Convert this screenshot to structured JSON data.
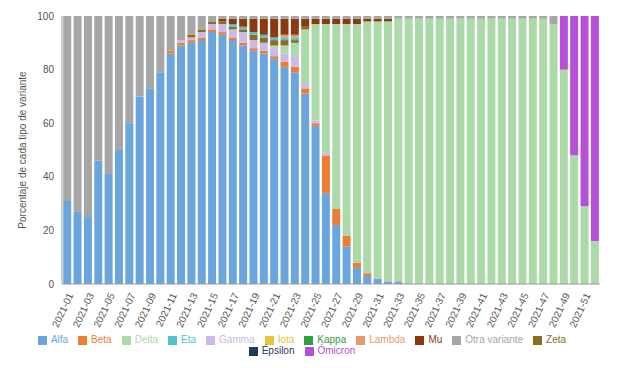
{
  "chart_data": {
    "type": "bar",
    "stacked": true,
    "grid": false,
    "legend": "bottom",
    "y_label": "Porcentaje de cada tipo de variante",
    "ylim": [
      0,
      100
    ],
    "yticks": [
      0,
      20,
      40,
      60,
      80,
      100
    ],
    "categories": [
      "2021-01",
      null,
      "2021-03",
      null,
      "2021-05",
      null,
      "2021-07",
      null,
      "2021-09",
      null,
      "2021-11",
      null,
      "2021-13",
      null,
      "2021-15",
      null,
      "2021-17",
      null,
      "2021-19",
      null,
      "2021-21",
      null,
      "2021-23",
      null,
      "2021-25",
      null,
      "2021-27",
      null,
      "2021-29",
      null,
      "2021-31",
      null,
      "2021-33",
      null,
      "2021-35",
      null,
      "2021-37",
      null,
      "2021-39",
      null,
      "2021-41",
      null,
      "2021-43",
      null,
      "2021-45",
      null,
      "2021-47",
      null,
      "2021-49",
      null,
      "2021-51",
      null
    ],
    "series": [
      {
        "name": "Alfa",
        "color": "#6aa6dd",
        "values": [
          31,
          27,
          25,
          46,
          41,
          50,
          60,
          70,
          73,
          79,
          86,
          89,
          90,
          91,
          94,
          93,
          91,
          89,
          87,
          86,
          84,
          81,
          79,
          71,
          59,
          34,
          22,
          14,
          6,
          3,
          2,
          1,
          1,
          0,
          0,
          0,
          0,
          0,
          0,
          0,
          0,
          0,
          0,
          0,
          0,
          0,
          0,
          0,
          0,
          0,
          0,
          0
        ]
      },
      {
        "name": "Beta",
        "color": "#ed7d31",
        "values": [
          0,
          0,
          0,
          0,
          0,
          0,
          0,
          0,
          0,
          0,
          1,
          1,
          1,
          1,
          1,
          1,
          1,
          1,
          1,
          1,
          1,
          2,
          2,
          2,
          1,
          14,
          6,
          4,
          2,
          1,
          0,
          0,
          0,
          0,
          0,
          0,
          0,
          0,
          0,
          0,
          0,
          0,
          0,
          0,
          0,
          0,
          0,
          0,
          0,
          0,
          0,
          0
        ]
      },
      {
        "name": "Gamma",
        "color": "#cdb8ea",
        "values": [
          0,
          0,
          0,
          0,
          0,
          0,
          0,
          0,
          0,
          0,
          0,
          1,
          1,
          2,
          2,
          3,
          3,
          4,
          3,
          3,
          3,
          3,
          4,
          2,
          1,
          1,
          0,
          0,
          0,
          0,
          0,
          0,
          0,
          0,
          0,
          0,
          0,
          0,
          0,
          0,
          0,
          0,
          0,
          0,
          0,
          0,
          0,
          0,
          0,
          0,
          0,
          0
        ]
      },
      {
        "name": "Delta",
        "color": "#acd9a8",
        "values": [
          0,
          0,
          0,
          0,
          0,
          0,
          0,
          0,
          0,
          0,
          0,
          0,
          0,
          0,
          0,
          0,
          0,
          0,
          0,
          0,
          1,
          3,
          5,
          20,
          36,
          48,
          69,
          79,
          89,
          94,
          96,
          97,
          98,
          99,
          99,
          99,
          99,
          99,
          99,
          99,
          99,
          99,
          99,
          99,
          99,
          99,
          99,
          97,
          80,
          48,
          29,
          16
        ]
      },
      {
        "name": "Épsilon",
        "color": "#1f3b5c",
        "values": [
          0,
          0,
          0,
          0,
          0,
          0,
          0,
          0,
          0,
          0,
          0,
          0,
          0,
          0,
          0,
          0,
          0,
          0,
          0,
          0,
          0,
          0,
          0,
          0,
          0,
          0,
          0,
          0,
          0,
          0,
          0,
          0,
          0,
          0,
          0,
          0,
          0,
          0,
          0,
          0,
          0,
          0,
          0,
          0,
          0,
          0,
          0,
          0,
          0,
          0,
          0,
          0
        ]
      },
      {
        "name": "Zeta",
        "color": "#8c6d1f",
        "values": [
          0,
          0,
          0,
          0,
          0,
          0,
          0,
          0,
          0,
          0,
          0,
          0,
          1,
          1,
          1,
          1,
          1,
          1,
          2,
          2,
          2,
          2,
          1,
          1,
          0,
          0,
          0,
          0,
          0,
          0,
          0,
          0,
          0,
          0,
          0,
          0,
          0,
          0,
          0,
          0,
          0,
          0,
          0,
          0,
          0,
          0,
          0,
          0,
          0,
          0,
          0,
          0
        ]
      },
      {
        "name": "Eta",
        "color": "#4fc3c7",
        "values": [
          0,
          0,
          0,
          0,
          0,
          0,
          0,
          0,
          0,
          0,
          0,
          0,
          0,
          0,
          0,
          0,
          1,
          1,
          1,
          1,
          1,
          1,
          1,
          0,
          0,
          0,
          0,
          0,
          0,
          0,
          0,
          0,
          0,
          0,
          0,
          0,
          0,
          0,
          0,
          0,
          0,
          0,
          0,
          0,
          0,
          0,
          0,
          0,
          0,
          0,
          0,
          0
        ]
      },
      {
        "name": "Iota",
        "color": "#e8c53a",
        "values": [
          0,
          0,
          0,
          0,
          0,
          0,
          0,
          0,
          0,
          0,
          0,
          0,
          0,
          0,
          0,
          0,
          0,
          0,
          0,
          0,
          0,
          0,
          0,
          0,
          0,
          0,
          0,
          0,
          0,
          0,
          0,
          0,
          0,
          0,
          0,
          0,
          0,
          0,
          0,
          0,
          0,
          0,
          0,
          0,
          0,
          0,
          0,
          0,
          0,
          0,
          0,
          0
        ]
      },
      {
        "name": "Kappa",
        "color": "#2e9e3e",
        "values": [
          0,
          0,
          0,
          0,
          0,
          0,
          0,
          0,
          0,
          0,
          0,
          0,
          0,
          0,
          0,
          0,
          0,
          0,
          0,
          0,
          0,
          0,
          0,
          0,
          0,
          0,
          0,
          0,
          0,
          0,
          0,
          0,
          0,
          0,
          0,
          0,
          0,
          0,
          0,
          0,
          0,
          0,
          0,
          0,
          0,
          0,
          0,
          0,
          0,
          0,
          0,
          0
        ]
      },
      {
        "name": "Lambda",
        "color": "#e59a6e",
        "values": [
          0,
          0,
          0,
          0,
          0,
          0,
          0,
          0,
          0,
          0,
          0,
          0,
          0,
          0,
          0,
          0,
          0,
          0,
          0,
          0,
          0,
          1,
          1,
          0,
          0,
          0,
          0,
          0,
          0,
          0,
          0,
          0,
          0,
          0,
          0,
          0,
          0,
          0,
          0,
          0,
          0,
          0,
          0,
          0,
          0,
          0,
          0,
          0,
          0,
          0,
          0,
          0
        ]
      },
      {
        "name": "Mu",
        "color": "#8b3a0f",
        "values": [
          0,
          0,
          0,
          0,
          0,
          0,
          0,
          0,
          0,
          0,
          0,
          0,
          0,
          0,
          0,
          1,
          2,
          3,
          5,
          6,
          7,
          6,
          6,
          3,
          2,
          2,
          2,
          2,
          2,
          1,
          1,
          1,
          0,
          0,
          0,
          0,
          0,
          0,
          0,
          0,
          0,
          0,
          0,
          0,
          0,
          0,
          0,
          0,
          0,
          0,
          0,
          0
        ]
      },
      {
        "name": "Ómicron",
        "color": "#b44fd6",
        "values": [
          0,
          0,
          0,
          0,
          0,
          0,
          0,
          0,
          0,
          0,
          0,
          0,
          0,
          0,
          0,
          0,
          0,
          0,
          0,
          0,
          0,
          0,
          0,
          0,
          0,
          0,
          0,
          0,
          0,
          0,
          0,
          0,
          0,
          0,
          0,
          0,
          0,
          0,
          0,
          0,
          0,
          0,
          0,
          0,
          0,
          0,
          0,
          0,
          20,
          52,
          71,
          84
        ]
      },
      {
        "name": "Otra variante",
        "color": "#a6a6a6",
        "values": [
          69,
          73,
          75,
          54,
          59,
          50,
          40,
          30,
          27,
          21,
          13,
          9,
          7,
          5,
          2,
          1,
          1,
          1,
          1,
          1,
          1,
          1,
          1,
          1,
          1,
          1,
          1,
          1,
          1,
          1,
          1,
          1,
          1,
          1,
          1,
          1,
          1,
          1,
          1,
          1,
          1,
          1,
          1,
          1,
          1,
          1,
          1,
          3,
          0,
          0,
          0,
          0
        ]
      }
    ]
  }
}
